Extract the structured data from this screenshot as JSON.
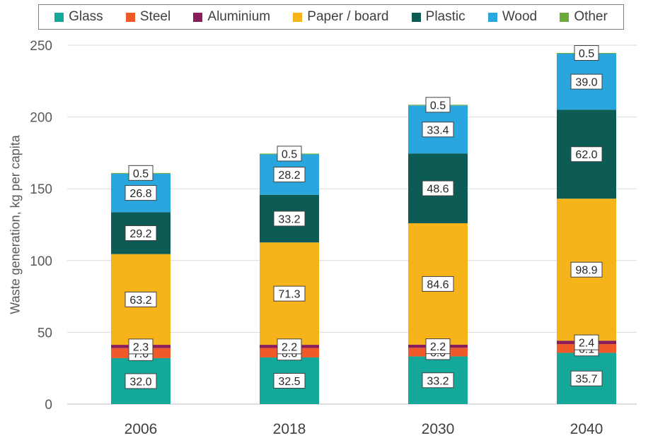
{
  "chart_data": {
    "type": "bar",
    "stacked": true,
    "categories": [
      "2006",
      "2018",
      "2030",
      "2040"
    ],
    "ylabel": "Waste generation, kg per capita",
    "ylim": [
      0,
      250
    ],
    "yticks": [
      0,
      50,
      100,
      150,
      200,
      250
    ],
    "grid": true,
    "legend_position": "top",
    "series": [
      {
        "name": "Glass",
        "color": "#14a89a",
        "values": [
          32.0,
          32.5,
          33.2,
          35.7
        ],
        "labels": [
          "32.0",
          "32.5",
          "33.2",
          "35.7"
        ]
      },
      {
        "name": "Steel",
        "color": "#ef5a28",
        "values": [
          7.0,
          6.6,
          6.0,
          6.1
        ],
        "labels": [
          "7.0",
          "6.6",
          "6.0",
          "6.1"
        ]
      },
      {
        "name": "Aluminium",
        "color": "#8a1e5a",
        "values": [
          2.3,
          2.2,
          2.2,
          2.4
        ],
        "labels": [
          "2.3",
          "2.2",
          "2.2",
          "2.4"
        ]
      },
      {
        "name": "Paper / board",
        "color": "#f6b41a",
        "values": [
          63.2,
          71.3,
          84.6,
          98.9
        ],
        "labels": [
          "63.2",
          "71.3",
          "84.6",
          "98.9"
        ]
      },
      {
        "name": "Plastic",
        "color": "#0c5b54",
        "values": [
          29.2,
          33.2,
          48.6,
          62.0
        ],
        "labels": [
          "29.2",
          "33.2",
          "48.6",
          "62.0"
        ]
      },
      {
        "name": "Wood",
        "color": "#2aa6de",
        "values": [
          26.8,
          28.2,
          33.4,
          39.0
        ],
        "labels": [
          "26.8",
          "28.2",
          "33.4",
          "39.0"
        ]
      },
      {
        "name": "Other",
        "color": "#6aaa3a",
        "values": [
          0.5,
          0.5,
          0.5,
          0.5
        ],
        "labels": [
          "0.5",
          "0.5",
          "0.5",
          "0.5"
        ]
      }
    ]
  }
}
